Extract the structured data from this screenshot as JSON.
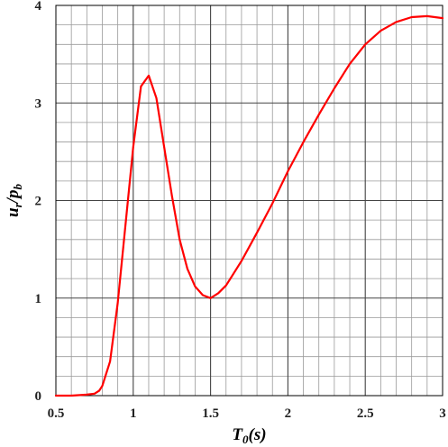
{
  "chart_data": {
    "type": "line",
    "xlabel": {
      "main": "T",
      "sub": "0",
      "rest": "(s)"
    },
    "ylabel": {
      "main": "u",
      "sub1": "r",
      "mid": "/p",
      "sub2": "b"
    },
    "xlim": [
      0.5,
      3
    ],
    "ylim": [
      0,
      4
    ],
    "xticks": [
      0.5,
      1,
      1.5,
      2,
      2.5,
      3
    ],
    "xtick_labels": [
      "0.5",
      "1",
      "1.5",
      "2",
      "2.5",
      "3"
    ],
    "yticks": [
      0,
      1,
      2,
      3,
      4
    ],
    "ytick_labels": [
      "0",
      "1",
      "2",
      "3",
      "4"
    ],
    "grid": true,
    "x_minor_step": 0.1,
    "y_minor_step": 0.2,
    "series": [
      {
        "color": "#ff0000",
        "x": [
          0.5,
          0.6,
          0.7,
          0.75,
          0.78,
          0.8,
          0.85,
          0.9,
          0.95,
          1.0,
          1.05,
          1.1,
          1.15,
          1.2,
          1.25,
          1.3,
          1.35,
          1.4,
          1.45,
          1.5,
          1.55,
          1.6,
          1.7,
          1.8,
          1.9,
          2.0,
          2.1,
          2.2,
          2.3,
          2.4,
          2.5,
          2.6,
          2.7,
          2.8,
          2.9,
          3.0
        ],
        "y": [
          0.0,
          0.0,
          0.01,
          0.02,
          0.05,
          0.1,
          0.35,
          0.95,
          1.75,
          2.55,
          3.17,
          3.28,
          3.05,
          2.55,
          2.05,
          1.6,
          1.3,
          1.12,
          1.03,
          1.0,
          1.05,
          1.13,
          1.38,
          1.67,
          1.97,
          2.3,
          2.6,
          2.88,
          3.15,
          3.4,
          3.6,
          3.74,
          3.83,
          3.88,
          3.89,
          3.87
        ]
      }
    ]
  }
}
